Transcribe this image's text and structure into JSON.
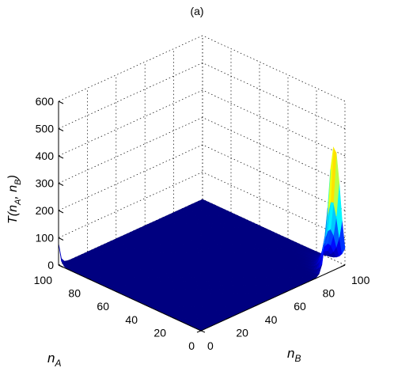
{
  "chart_data": {
    "type": "surface",
    "title": "(a)",
    "xlabel": {
      "main": "n",
      "sub": "A"
    },
    "ylabel": {
      "main": "n",
      "sub": "B"
    },
    "zlabel": {
      "p1": "T(n",
      "s1": "A",
      "p2": ", n",
      "s2": "B",
      "p3": ")"
    },
    "xlim": [
      0,
      100
    ],
    "ylim": [
      0,
      100
    ],
    "zlim": [
      0,
      600
    ],
    "x_ticks": [
      "0",
      "20",
      "40",
      "60",
      "80",
      "100"
    ],
    "y_ticks": [
      "0",
      "20",
      "40",
      "60",
      "80",
      "100"
    ],
    "z_ticks": [
      "0",
      "100",
      "200",
      "300",
      "400",
      "500",
      "600"
    ],
    "grid": true,
    "colormap": "jet",
    "features": [
      {
        "description": "ridge along n_B",
        "n_A": 0,
        "n_B_peak": 93,
        "peak_value": 500
      },
      {
        "description": "edge value",
        "n_A": 100,
        "n_B": 0,
        "value": 80
      }
    ]
  }
}
